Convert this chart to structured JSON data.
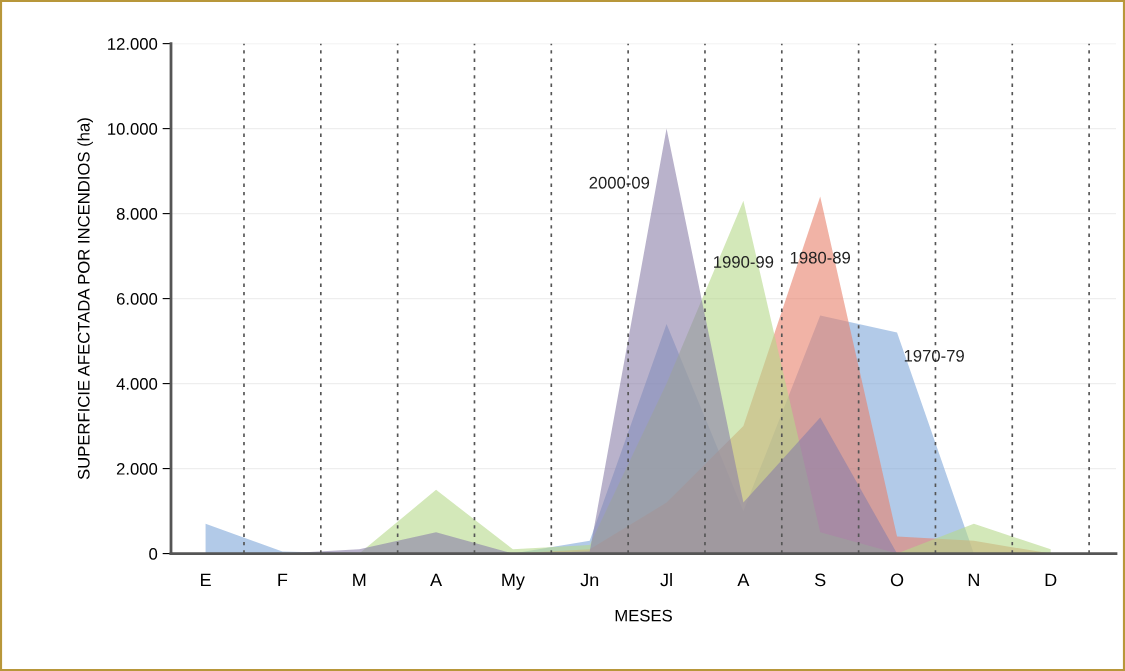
{
  "chart_data": {
    "type": "area",
    "xlabel": "MESES",
    "ylabel": "SUPERFICIE AFECTADA POR INCENDIOS (ha)",
    "categories": [
      "E",
      "F",
      "M",
      "A",
      "My",
      "Jn",
      "Jl",
      "A",
      "S",
      "O",
      "N",
      "D"
    ],
    "ylim": [
      0,
      12000
    ],
    "yticks": [
      {
        "value": 0,
        "label": "0"
      },
      {
        "value": 2000,
        "label": "2.000"
      },
      {
        "value": 4000,
        "label": "4.000"
      },
      {
        "value": 6000,
        "label": "6.000"
      },
      {
        "value": 8000,
        "label": "8.000"
      },
      {
        "value": 10000,
        "label": "10.000"
      },
      {
        "value": 12000,
        "label": "12.000"
      }
    ],
    "grid": "y",
    "legend": false,
    "series": [
      {
        "name": "1970-79",
        "color": "#7ea6d8",
        "values": [
          700,
          50,
          0,
          0,
          0,
          300,
          5400,
          1000,
          5600,
          5200,
          0,
          0
        ]
      },
      {
        "name": "1980-89",
        "color": "#e8806a",
        "values": [
          0,
          0,
          0,
          0,
          0,
          100,
          1200,
          3000,
          8400,
          400,
          300,
          0
        ]
      },
      {
        "name": "1990-99",
        "color": "#b5d88a",
        "values": [
          0,
          0,
          0,
          1500,
          100,
          200,
          4000,
          8300,
          500,
          0,
          700,
          100
        ]
      },
      {
        "name": "2000-09",
        "color": "#8a7fa8",
        "values": [
          0,
          0,
          100,
          500,
          0,
          50,
          10000,
          1200,
          3200,
          0,
          0,
          0
        ]
      }
    ]
  }
}
